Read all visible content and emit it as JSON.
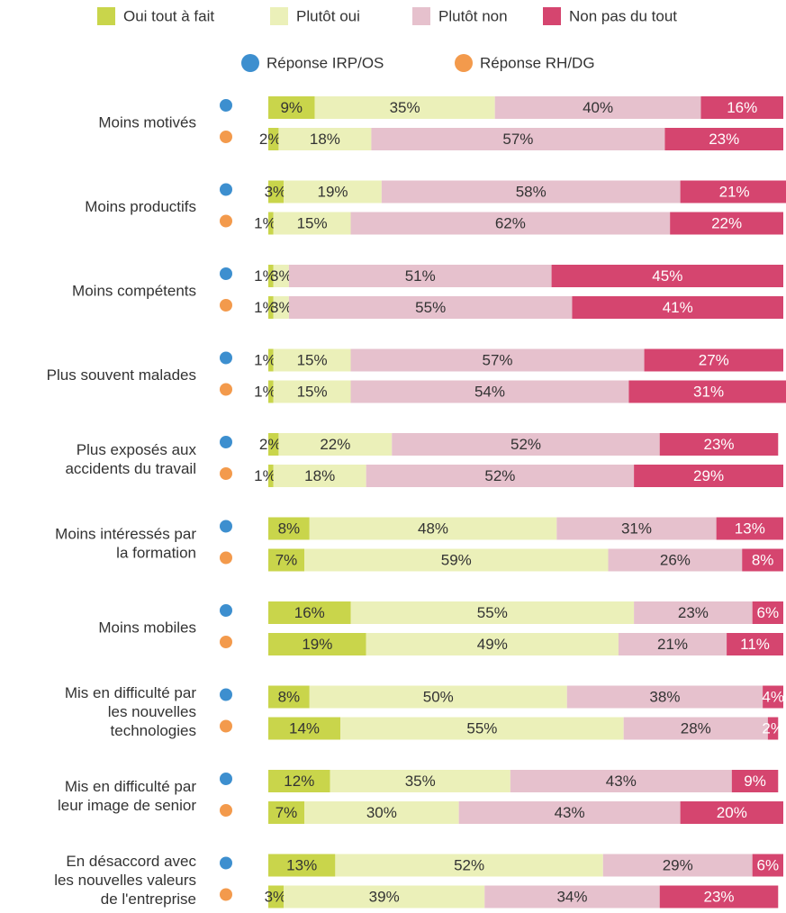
{
  "chart_data": {
    "type": "stacked-bar-horizontal",
    "categories": [
      [
        "Moins motivés"
      ],
      [
        "Moins productifs"
      ],
      [
        "Moins compétents"
      ],
      [
        "Plus souvent malades"
      ],
      [
        "Plus exposés aux",
        "accidents du travail"
      ],
      [
        "Moins intéressés par",
        "la formation"
      ],
      [
        "Moins mobiles"
      ],
      [
        "Mis en difficulté par",
        "les nouvelles",
        "technologies"
      ],
      [
        "Mis en difficulté par",
        "leur image de senior"
      ],
      [
        "En désaccord avec",
        "les nouvelles valeurs",
        "de l'entreprise"
      ]
    ],
    "groups": [
      {
        "name": "Réponse IRP/OS",
        "color": "#3d8fcf"
      },
      {
        "name": "Réponse RH/DG",
        "color": "#f39a4c"
      }
    ],
    "xlim": [
      0,
      100
    ],
    "series": [
      {
        "name": "Oui tout à fait",
        "color": "#c9d54b",
        "values": [
          [
            9,
            2
          ],
          [
            3,
            1
          ],
          [
            1,
            1
          ],
          [
            1,
            1
          ],
          [
            2,
            1
          ],
          [
            8,
            7
          ],
          [
            16,
            19
          ],
          [
            8,
            14
          ],
          [
            12,
            7
          ],
          [
            13,
            3
          ]
        ],
        "value_labels": [
          [
            "9%",
            "2%"
          ],
          [
            "3%",
            "1%"
          ],
          [
            "1%",
            "1%"
          ],
          [
            "1%",
            "1%"
          ],
          [
            "2%",
            "1%"
          ],
          [
            "8%",
            "7%"
          ],
          [
            "16%",
            "19%"
          ],
          [
            "8%",
            "14%"
          ],
          [
            "12%",
            "7%"
          ],
          [
            "13%",
            "3%"
          ]
        ]
      },
      {
        "name": "Plutôt oui",
        "color": "#ebf0b9",
        "values": [
          [
            35,
            18
          ],
          [
            19,
            15
          ],
          [
            3,
            3
          ],
          [
            15,
            15
          ],
          [
            22,
            18
          ],
          [
            48,
            59
          ],
          [
            55,
            49
          ],
          [
            50,
            55
          ],
          [
            35,
            30
          ],
          [
            52,
            39
          ]
        ],
        "value_labels": [
          [
            "35%",
            "18%"
          ],
          [
            "19%",
            "15%"
          ],
          [
            "3%",
            "3%"
          ],
          [
            "15%",
            "15%"
          ],
          [
            "22%",
            "18%"
          ],
          [
            "48%",
            "59%"
          ],
          [
            "55%",
            "49%"
          ],
          [
            "50%",
            "55%"
          ],
          [
            "35%",
            "30%"
          ],
          [
            "52%",
            "39%"
          ]
        ]
      },
      {
        "name": "Plutôt non",
        "color": "#e6c1cd",
        "values": [
          [
            40,
            57
          ],
          [
            58,
            62
          ],
          [
            51,
            55
          ],
          [
            57,
            54
          ],
          [
            52,
            52
          ],
          [
            31,
            26
          ],
          [
            23,
            21
          ],
          [
            38,
            28
          ],
          [
            43,
            43
          ],
          [
            29,
            34
          ]
        ],
        "value_labels": [
          [
            "40%",
            "57%"
          ],
          [
            "58%",
            "62%"
          ],
          [
            "51%",
            "55%"
          ],
          [
            "57%",
            "54%"
          ],
          [
            "52%",
            "52%"
          ],
          [
            "31%",
            "26%"
          ],
          [
            "23%",
            "21%"
          ],
          [
            "38%",
            "28%"
          ],
          [
            "43%",
            "43%"
          ],
          [
            "29%",
            "34%"
          ]
        ]
      },
      {
        "name": "Non pas du tout",
        "color": "#d5456f",
        "values": [
          [
            16,
            23
          ],
          [
            21,
            22
          ],
          [
            45,
            41
          ],
          [
            27,
            31
          ],
          [
            23,
            29
          ],
          [
            13,
            8
          ],
          [
            6,
            11
          ],
          [
            4,
            2
          ],
          [
            9,
            20
          ],
          [
            6,
            23
          ]
        ],
        "value_labels": [
          [
            "16%",
            "23%"
          ],
          [
            "21%",
            "22%"
          ],
          [
            "45%",
            "41%"
          ],
          [
            "27%",
            "31%"
          ],
          [
            "23%",
            "29%"
          ],
          [
            "13%",
            "8%"
          ],
          [
            "6%",
            "11%"
          ],
          [
            "4%",
            "2%"
          ],
          [
            "9%",
            "20%"
          ],
          [
            "6%",
            "23%"
          ]
        ]
      }
    ]
  }
}
